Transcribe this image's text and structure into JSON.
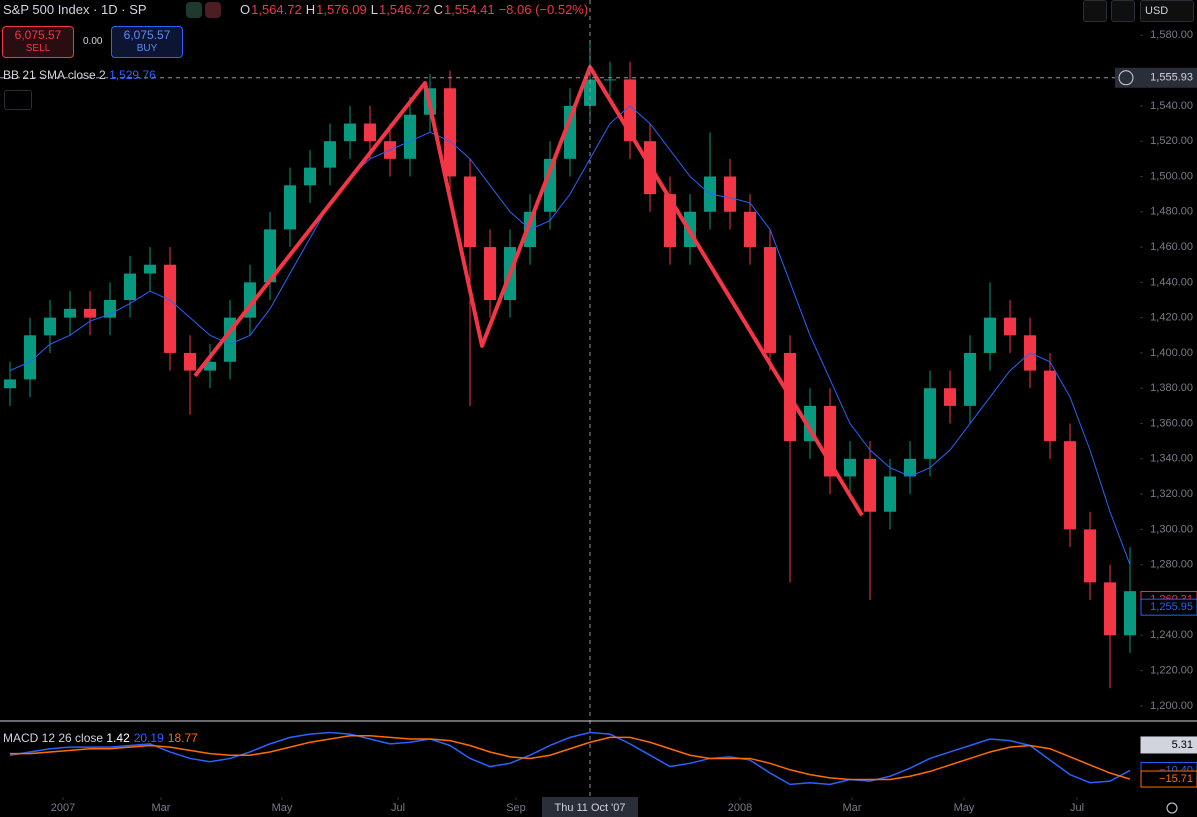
{
  "header": {
    "symbol": "S&P 500 Index · 1D · SP",
    "ohlc": [
      {
        "key": "O",
        "value": "1,564.72"
      },
      {
        "key": "H",
        "value": "1,576.09"
      },
      {
        "key": "L",
        "value": "1,546.72"
      },
      {
        "key": "C",
        "value": "1,554.41"
      }
    ],
    "change": "−8.06 (−0.52%)",
    "currency": "USD"
  },
  "trade": {
    "sell_price": "6,075.57",
    "sell": "SELL",
    "spread": "0.00",
    "buy_price": "6,075.57",
    "buy": "BUY"
  },
  "chart_data": [
    {
      "type": "candlestick",
      "indicator": "BB 21 SMA close 2",
      "indicator_value": "1,529.76",
      "up_color": "#089981",
      "down_color": "#f23645",
      "sma_color": "#2962ff",
      "open": [
        1380,
        1385,
        1410,
        1420,
        1425,
        1420,
        1430,
        1445,
        1450,
        1400,
        1390,
        1395,
        1420,
        1440,
        1470,
        1495,
        1505,
        1520,
        1530,
        1520,
        1510,
        1535,
        1550,
        1500,
        1460,
        1430,
        1460,
        1480,
        1510,
        1540,
        1555,
        1555,
        1520,
        1490,
        1460,
        1480,
        1500,
        1480,
        1460,
        1400,
        1350,
        1370,
        1330,
        1340,
        1310,
        1330,
        1340,
        1380,
        1370,
        1400,
        1420,
        1410,
        1390,
        1350,
        1300,
        1270,
        1240
      ],
      "high": [
        1395,
        1420,
        1430,
        1435,
        1435,
        1440,
        1455,
        1460,
        1460,
        1410,
        1405,
        1430,
        1450,
        1480,
        1505,
        1515,
        1530,
        1540,
        1540,
        1530,
        1545,
        1558,
        1560,
        1510,
        1470,
        1470,
        1490,
        1520,
        1550,
        1576,
        1565,
        1565,
        1530,
        1500,
        1490,
        1525,
        1510,
        1490,
        1470,
        1410,
        1380,
        1380,
        1350,
        1350,
        1340,
        1350,
        1390,
        1390,
        1410,
        1440,
        1430,
        1420,
        1400,
        1360,
        1310,
        1280,
        1290
      ],
      "low": [
        1370,
        1375,
        1400,
        1410,
        1410,
        1410,
        1420,
        1435,
        1390,
        1365,
        1380,
        1385,
        1410,
        1430,
        1460,
        1485,
        1495,
        1510,
        1510,
        1500,
        1500,
        1525,
        1490,
        1370,
        1420,
        1420,
        1450,
        1470,
        1500,
        1530,
        1545,
        1510,
        1480,
        1450,
        1450,
        1470,
        1470,
        1450,
        1390,
        1270,
        1340,
        1320,
        1320,
        1260,
        1300,
        1320,
        1330,
        1360,
        1360,
        1390,
        1400,
        1380,
        1340,
        1290,
        1260,
        1210,
        1230
      ],
      "close": [
        1385,
        1410,
        1420,
        1425,
        1420,
        1430,
        1445,
        1450,
        1400,
        1390,
        1395,
        1420,
        1440,
        1470,
        1495,
        1505,
        1520,
        1530,
        1520,
        1510,
        1535,
        1550,
        1500,
        1460,
        1430,
        1460,
        1480,
        1510,
        1540,
        1555,
        1555,
        1520,
        1490,
        1460,
        1480,
        1500,
        1480,
        1460,
        1400,
        1350,
        1370,
        1330,
        1340,
        1310,
        1330,
        1340,
        1380,
        1370,
        1400,
        1420,
        1410,
        1390,
        1350,
        1300,
        1270,
        1240,
        1265
      ],
      "sma": [
        1390,
        1395,
        1405,
        1410,
        1418,
        1422,
        1428,
        1435,
        1430,
        1420,
        1410,
        1405,
        1410,
        1425,
        1445,
        1465,
        1485,
        1500,
        1510,
        1515,
        1520,
        1525,
        1520,
        1510,
        1495,
        1480,
        1470,
        1475,
        1490,
        1510,
        1530,
        1540,
        1530,
        1515,
        1500,
        1490,
        1488,
        1485,
        1470,
        1440,
        1410,
        1385,
        1360,
        1345,
        1335,
        1330,
        1335,
        1345,
        1360,
        1375,
        1390,
        1400,
        1395,
        1375,
        1345,
        1310,
        1280
      ],
      "pattern": {
        "color": "#f23645",
        "x": [
          9.25,
          20.75,
          23.6,
          29,
          42.6
        ],
        "y": [
          1387,
          1553,
          1404,
          1562,
          1308
        ]
      },
      "xlim": [
        -0.5,
        56.5
      ],
      "ylim": [
        1192,
        1600
      ],
      "yticks": [
        {
          "value": 1580,
          "label": "1,580.00"
        },
        {
          "value": 1540,
          "label": "1,540.00"
        },
        {
          "value": 1520,
          "label": "1,520.00"
        },
        {
          "value": 1500,
          "label": "1,500.00"
        },
        {
          "value": 1480,
          "label": "1,480.00"
        },
        {
          "value": 1460,
          "label": "1,460.00"
        },
        {
          "value": 1440,
          "label": "1,440.00"
        },
        {
          "value": 1420,
          "label": "1,420.00"
        },
        {
          "value": 1400,
          "label": "1,400.00"
        },
        {
          "value": 1380,
          "label": "1,380.00"
        },
        {
          "value": 1360,
          "label": "1,360.00"
        },
        {
          "value": 1340,
          "label": "1,340.00"
        },
        {
          "value": 1320,
          "label": "1,320.00"
        },
        {
          "value": 1300,
          "label": "1,300.00"
        },
        {
          "value": 1280,
          "label": "1,280.00"
        },
        {
          "value": 1260,
          "label": "1,260.00"
        },
        {
          "value": 1240,
          "label": "1,240.00"
        },
        {
          "value": 1220,
          "label": "1,220.00"
        },
        {
          "value": 1200,
          "label": "1,200.00"
        }
      ],
      "xticks": [
        {
          "value": 2.65,
          "label": "2007"
        },
        {
          "value": 7.55,
          "label": "Mar"
        },
        {
          "value": 13.6,
          "label": "May"
        },
        {
          "value": 19.4,
          "label": "Jul"
        },
        {
          "value": 25.3,
          "label": "Sep"
        },
        {
          "value": 36.5,
          "label": "2008"
        },
        {
          "value": 42.1,
          "label": "Mar"
        },
        {
          "value": 47.7,
          "label": "May"
        },
        {
          "value": 53.35,
          "label": "Jul"
        }
      ],
      "crosshair": {
        "x": 29,
        "label": "Thu 11 Oct '07",
        "y": {
          "value": 1555.93,
          "label": "1,555.93"
        }
      },
      "price_labels": [
        {
          "value": 1260.31,
          "label": "1,260.31",
          "color": "#f23645"
        },
        {
          "value": 1255.95,
          "label": "1,255.95",
          "color": "#2962ff"
        }
      ]
    },
    {
      "type": "macd",
      "label": "MACD 12 26 close",
      "readout": [
        {
          "text": "1.42",
          "color": "#ffffff"
        },
        {
          "text": "20.19",
          "color": "#2962ff"
        },
        {
          "text": "18.77",
          "color": "#ff6d00"
        }
      ],
      "ylim": [
        -26.8,
        19.5
      ],
      "series": [
        {
          "name": "MACD",
          "color": "#2962ff",
          "values": [
            -1,
            1,
            3,
            4,
            4,
            4,
            5,
            6,
            1,
            -3,
            -5,
            -3,
            1,
            6,
            10,
            12,
            13,
            12,
            9,
            6,
            7,
            9,
            5,
            -3,
            -8,
            -6,
            -1,
            5,
            10,
            13,
            12,
            6,
            -1,
            -8,
            -6,
            -3,
            -2,
            -4,
            -12,
            -19,
            -18,
            -19,
            -16,
            -17,
            -14,
            -9,
            -3,
            1,
            5,
            9,
            8,
            5,
            -4,
            -13,
            -18,
            -17,
            -10.4
          ]
        },
        {
          "name": "Signal",
          "color": "#ff6d00",
          "values": [
            0,
            0,
            1,
            2,
            3,
            3,
            4,
            5,
            4,
            2,
            0,
            -1,
            -1,
            1,
            4,
            7,
            9,
            11,
            11,
            10,
            9,
            9,
            8,
            5,
            1,
            -2,
            -3,
            -1,
            3,
            7,
            10,
            10,
            7,
            3,
            -1,
            -3,
            -3,
            -3,
            -6,
            -10,
            -13,
            -15,
            -16,
            -16,
            -16,
            -14,
            -11,
            -7,
            -3,
            1,
            4,
            5,
            3,
            -2,
            -7,
            -12,
            -15.71
          ]
        }
      ],
      "axis_labels": [
        {
          "value": 5.31,
          "label": "5.31",
          "color": "#d1d4dc"
        },
        {
          "value": -10.4,
          "label": "−10.40",
          "color": "#2962ff"
        },
        {
          "value": -15.71,
          "label": "−15.71",
          "color": "#ff6d00"
        }
      ]
    }
  ]
}
